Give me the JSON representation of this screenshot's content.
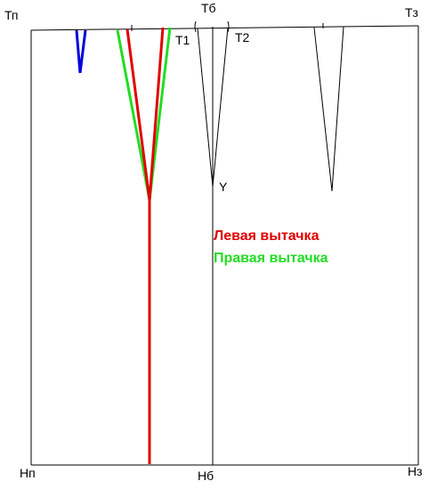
{
  "labels": {
    "tp": "Тп",
    "tb": "Тб",
    "tz": "Тз",
    "np": "Нп",
    "nb": "Нб",
    "nz": "Нз",
    "t1": "Т1",
    "t2": "Т2",
    "y": "Y"
  },
  "legend": [
    {
      "text": "Левая вытачка",
      "color": "#e00000"
    },
    {
      "text": "Правая вытачка",
      "color": "#22dd22"
    }
  ]
}
